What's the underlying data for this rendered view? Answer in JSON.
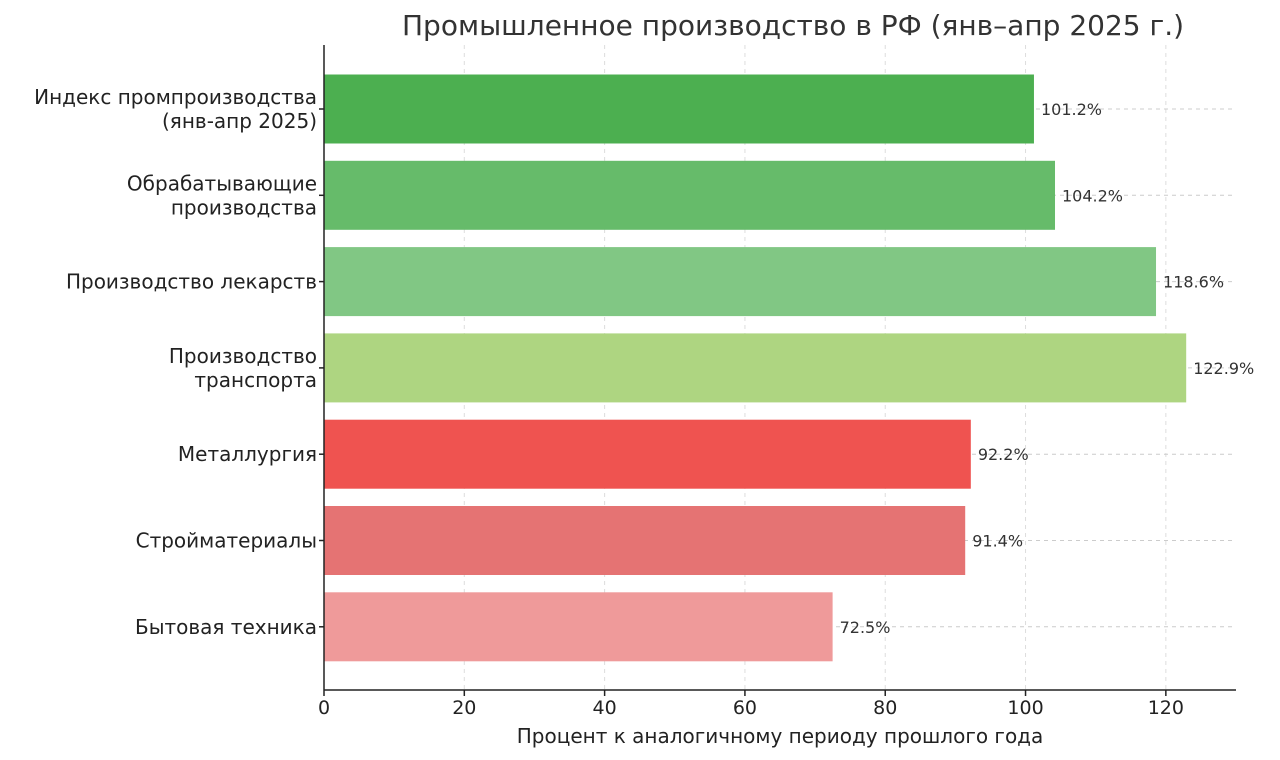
{
  "chart_data": {
    "type": "bar",
    "orientation": "horizontal",
    "title": "Промышленное производство в РФ (янв–апр 2025 г.)",
    "xlabel": "Процент к аналогичному периоду прошлого года",
    "ylabel": "",
    "xlim": [
      0,
      130
    ],
    "xticks": [
      0,
      20,
      40,
      60,
      80,
      100,
      120
    ],
    "grid": true,
    "categories": [
      [
        "Индекс промпроизводства",
        "(янв-апр 2025)"
      ],
      [
        "Обрабатывающие",
        "производства"
      ],
      [
        "Производство лекарств"
      ],
      [
        "Производство",
        "транспорта"
      ],
      [
        "Металлургия"
      ],
      [
        "Стройматериалы"
      ],
      [
        "Бытовая техника"
      ]
    ],
    "values": [
      101.2,
      104.2,
      118.6,
      122.9,
      92.2,
      91.4,
      72.5
    ],
    "value_labels": [
      "101.2%",
      "104.2%",
      "118.6%",
      "122.9%",
      "92.2%",
      "91.4%",
      "72.5%"
    ],
    "colors": [
      "#4caf50",
      "#66bb6a",
      "#81c784",
      "#aed581",
      "#ef5350",
      "#e57373",
      "#ef9a9a"
    ]
  }
}
